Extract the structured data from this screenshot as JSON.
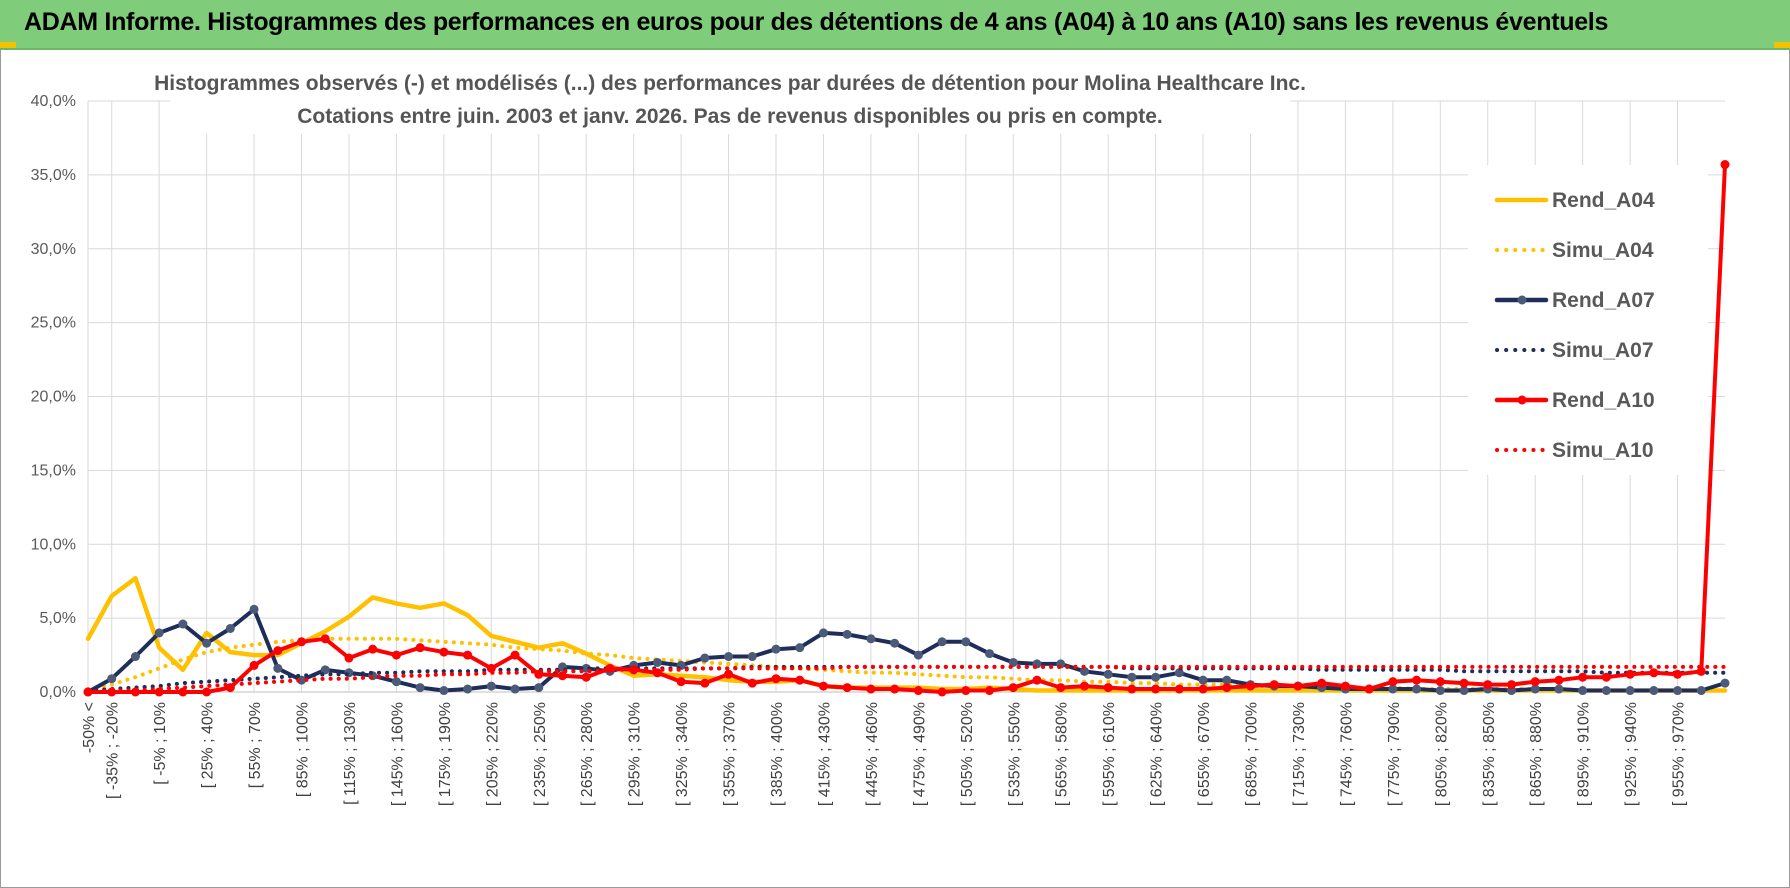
{
  "banner": {
    "title": "ADAM Informe. Histogrammes des performances en euros pour des détentions de 4 ans (A04) à 10 ans (A10) sans les revenus éventuels"
  },
  "chart_data": {
    "type": "line",
    "title": "Histogrammes observés (-) et modélisés (...) des performances par durées de détention pour Molina Healthcare Inc.",
    "subtitle": "Cotations entre juin. 2003 et janv. 2026. Pas de revenus disponibles ou pris en compte.",
    "xlabel": "",
    "ylabel": "",
    "ylim": [
      0,
      40
    ],
    "y_ticks": [
      "0,0%",
      "5,0%",
      "10,0%",
      "15,0%",
      "20,0%",
      "25,0%",
      "30,0%",
      "35,0%",
      "40,0%"
    ],
    "x_tick_labels": [
      "-50% <",
      "[ -35% ; -20%",
      "[ -5% ; 10%",
      "[ 25% ; 40%",
      "[ 55% ; 70%",
      "[ 85% ; 100%",
      "[ 115% ; 130%",
      "[ 145% ; 160%",
      "[ 175% ; 190%",
      "[ 205% ; 220%",
      "[ 235% ; 250%",
      "[ 265% ; 280%",
      "[ 295% ; 310%",
      "[ 325% ; 340%",
      "[ 355% ; 370%",
      "[ 385% ; 400%",
      "[ 415% ; 430%",
      "[ 445% ; 460%",
      "[ 475% ; 490%",
      "[ 505% ; 520%",
      "[ 535% ; 550%",
      "[ 565% ; 580%",
      "[ 595% ; 610%",
      "[ 625% ; 640%",
      "[ 655% ; 670%",
      "[ 685% ; 700%",
      "[ 715% ; 730%",
      "[ 745% ; 760%",
      "[ 775% ; 790%",
      "[ 805% ; 820%",
      "[ 835% ; 850%",
      "[ 865% ; 880%",
      "[ 895% ; 910%",
      "[ 925% ; 940%",
      "[ 955% ; 970%"
    ],
    "legend_position": "right",
    "series": [
      {
        "name": "Rend_A04",
        "style": "solid",
        "color": "#ffc000",
        "markers": false,
        "values": [
          3.6,
          6.5,
          7.7,
          3.0,
          1.5,
          4.0,
          2.7,
          2.5,
          2.5,
          3.3,
          4.1,
          5.1,
          6.4,
          6.0,
          5.7,
          6.0,
          5.2,
          3.8,
          3.4,
          3.0,
          3.3,
          2.6,
          1.8,
          1.1,
          1.2,
          1.1,
          1.0,
          0.8,
          0.7,
          0.7,
          0.8,
          0.4,
          0.3,
          0.3,
          0.3,
          0.3,
          0.2,
          0.2,
          0.3,
          0.2,
          0.1,
          0.1,
          0.1,
          0.1,
          0.1,
          0.1,
          0.1,
          0.1,
          0.1,
          0.1,
          0.1,
          0.1,
          0.1,
          0.1,
          0.1,
          0.1,
          0.1,
          0.1,
          0.1,
          0.1,
          0.1,
          0.1,
          0.1,
          0.1,
          0.1,
          0.1,
          0.1,
          0.1,
          0.1,
          0.1
        ]
      },
      {
        "name": "Simu_A04",
        "style": "dotted",
        "color": "#ffc000",
        "markers": false,
        "values": [
          0.2,
          0.5,
          1.0,
          1.6,
          2.2,
          2.7,
          3.0,
          3.2,
          3.4,
          3.5,
          3.6,
          3.6,
          3.6,
          3.6,
          3.5,
          3.4,
          3.3,
          3.2,
          3.0,
          2.9,
          2.8,
          2.6,
          2.5,
          2.3,
          2.2,
          2.1,
          2.0,
          1.9,
          1.8,
          1.7,
          1.6,
          1.5,
          1.4,
          1.3,
          1.3,
          1.2,
          1.1,
          1.0,
          1.0,
          0.9,
          0.8,
          0.8,
          0.7,
          0.7,
          0.6,
          0.6,
          0.5,
          0.5,
          0.5,
          0.4,
          0.4,
          0.4,
          0.3,
          0.3,
          0.3,
          0.3,
          0.2,
          0.2,
          0.2,
          0.2,
          0.2,
          0.2,
          0.2,
          0.1,
          0.1,
          0.1,
          0.1,
          0.1,
          0.1,
          0.1
        ]
      },
      {
        "name": "Rend_A07",
        "style": "solid",
        "color": "#1f2d5a",
        "markers": true,
        "values": [
          0.0,
          0.9,
          2.4,
          4.0,
          4.6,
          3.3,
          4.3,
          5.6,
          1.6,
          0.8,
          1.5,
          1.3,
          1.1,
          0.7,
          0.3,
          0.1,
          0.2,
          0.4,
          0.2,
          0.3,
          1.7,
          1.6,
          1.4,
          1.8,
          2.0,
          1.8,
          2.3,
          2.4,
          2.4,
          2.9,
          3.0,
          4.0,
          3.9,
          3.6,
          3.3,
          2.5,
          3.4,
          3.4,
          2.6,
          2.0,
          1.9,
          1.9,
          1.4,
          1.2,
          1.0,
          1.0,
          1.3,
          0.8,
          0.8,
          0.5,
          0.4,
          0.4,
          0.3,
          0.2,
          0.2,
          0.2,
          0.2,
          0.1,
          0.1,
          0.2,
          0.1,
          0.2,
          0.2,
          0.1,
          0.1,
          0.1,
          0.1,
          0.1,
          0.1,
          0.6
        ]
      },
      {
        "name": "Simu_A07",
        "style": "dotted",
        "color": "#1f2d5a",
        "markers": false,
        "values": [
          0.1,
          0.2,
          0.3,
          0.4,
          0.6,
          0.7,
          0.8,
          0.9,
          1.0,
          1.1,
          1.2,
          1.2,
          1.3,
          1.3,
          1.4,
          1.4,
          1.4,
          1.5,
          1.5,
          1.5,
          1.5,
          1.6,
          1.6,
          1.6,
          1.6,
          1.6,
          1.6,
          1.6,
          1.7,
          1.7,
          1.7,
          1.7,
          1.7,
          1.7,
          1.7,
          1.7,
          1.7,
          1.7,
          1.7,
          1.7,
          1.7,
          1.7,
          1.7,
          1.7,
          1.6,
          1.6,
          1.6,
          1.6,
          1.6,
          1.6,
          1.6,
          1.6,
          1.5,
          1.5,
          1.5,
          1.5,
          1.5,
          1.5,
          1.4,
          1.4,
          1.4,
          1.4,
          1.4,
          1.4,
          1.3,
          1.3,
          1.3,
          1.3,
          1.3,
          1.3
        ]
      },
      {
        "name": "Rend_A10",
        "style": "solid",
        "color": "#ff0000",
        "markers": true,
        "values": [
          0.0,
          0.0,
          0.0,
          0.0,
          0.0,
          0.0,
          0.3,
          1.8,
          2.8,
          3.4,
          3.6,
          2.3,
          2.9,
          2.5,
          3.0,
          2.7,
          2.5,
          1.6,
          2.5,
          1.2,
          1.1,
          1.0,
          1.6,
          1.5,
          1.3,
          0.7,
          0.6,
          1.2,
          0.6,
          0.9,
          0.8,
          0.4,
          0.3,
          0.2,
          0.2,
          0.1,
          0.0,
          0.1,
          0.1,
          0.3,
          0.8,
          0.3,
          0.4,
          0.3,
          0.2,
          0.2,
          0.2,
          0.2,
          0.3,
          0.4,
          0.5,
          0.4,
          0.6,
          0.4,
          0.2,
          0.7,
          0.8,
          0.7,
          0.6,
          0.5,
          0.5,
          0.7,
          0.8,
          1.0,
          1.0,
          1.2,
          1.3,
          1.2,
          1.4,
          35.7
        ]
      },
      {
        "name": "Simu_A10",
        "style": "dotted",
        "color": "#ff0000",
        "markers": false,
        "values": [
          0.0,
          0.1,
          0.1,
          0.2,
          0.3,
          0.4,
          0.5,
          0.6,
          0.7,
          0.8,
          0.9,
          0.9,
          1.0,
          1.1,
          1.1,
          1.2,
          1.2,
          1.3,
          1.3,
          1.4,
          1.4,
          1.4,
          1.5,
          1.5,
          1.5,
          1.5,
          1.6,
          1.6,
          1.6,
          1.6,
          1.6,
          1.6,
          1.7,
          1.7,
          1.7,
          1.7,
          1.7,
          1.7,
          1.7,
          1.7,
          1.7,
          1.7,
          1.7,
          1.7,
          1.7,
          1.7,
          1.7,
          1.7,
          1.7,
          1.7,
          1.7,
          1.7,
          1.7,
          1.7,
          1.7,
          1.7,
          1.7,
          1.7,
          1.7,
          1.7,
          1.7,
          1.7,
          1.7,
          1.7,
          1.7,
          1.7,
          1.7,
          1.7,
          1.7,
          1.7
        ]
      }
    ]
  }
}
